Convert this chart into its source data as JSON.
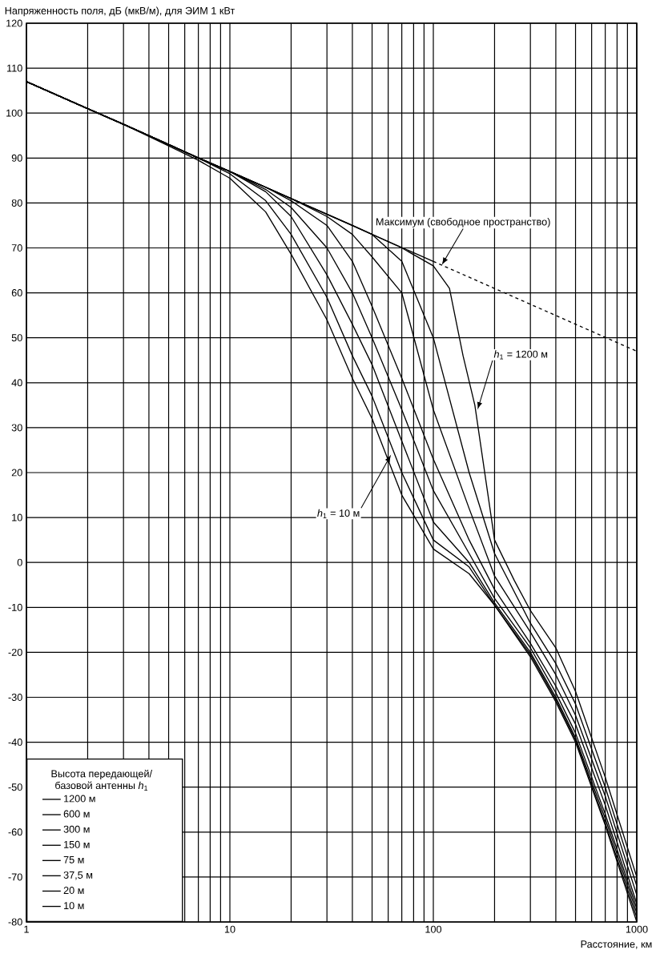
{
  "chart_data": {
    "type": "line",
    "ylabel": "Напряженность поля, дБ (мкВ/м), для ЭИМ 1 кВт",
    "xlabel": "Расстояние, км",
    "legend_title": "Высота передающей/ базовой антенны *h*$_{1}$",
    "x": [
      1,
      2,
      3,
      5,
      7,
      10,
      15,
      20,
      30,
      40,
      50,
      70,
      100,
      150,
      200,
      300,
      400,
      500,
      700,
      1000
    ],
    "series": [
      {
        "name": "1200 м",
        "color": "#000000",
        "x": [
          1,
          2,
          3,
          5,
          7,
          10,
          15,
          20,
          30,
          40,
          50,
          70,
          100,
          120,
          140,
          160,
          200,
          250,
          300,
          400,
          500,
          700,
          1000
        ],
        "values": [
          107,
          101,
          97.5,
          93,
          90,
          87,
          83.5,
          81,
          77.5,
          75,
          73,
          70,
          66,
          61,
          46,
          35,
          5,
          -4,
          -10.7,
          -19,
          -28.7,
          -47.8,
          -70
        ]
      },
      {
        "name": "600 м",
        "color": "#000000",
        "values": [
          107,
          101,
          97.5,
          93,
          90,
          87,
          83.5,
          81,
          77.5,
          75,
          73,
          67,
          50,
          20,
          2,
          -13.5,
          -22.5,
          -31.5,
          -50,
          -72
        ]
      },
      {
        "name": "300 м",
        "color": "#000000",
        "values": [
          107,
          101,
          97.5,
          93,
          90,
          87,
          83.5,
          81,
          77,
          73,
          68,
          60,
          34,
          12,
          -3,
          -15.5,
          -25,
          -34,
          -52,
          -74
        ]
      },
      {
        "name": "150 м",
        "color": "#000000",
        "values": [
          107,
          101,
          97.5,
          93,
          90,
          87,
          83.5,
          80.5,
          75,
          67,
          57,
          41,
          23,
          5,
          -6,
          -18,
          -27.5,
          -36,
          -54,
          -76
        ]
      },
      {
        "name": "75 м",
        "color": "#000000",
        "values": [
          107,
          101,
          97.5,
          93,
          90,
          87,
          83,
          79,
          70,
          60,
          50,
          34,
          16,
          2,
          -8,
          -19,
          -29,
          -38,
          -56,
          -77
        ]
      },
      {
        "name": "37,5 м",
        "color": "#000000",
        "values": [
          107,
          101,
          97.5,
          93,
          90,
          87,
          82.5,
          77,
          64,
          53,
          44,
          27,
          9,
          0,
          -9,
          -20,
          -30,
          -39,
          -57,
          -78
        ]
      },
      {
        "name": "20 м",
        "color": "#000000",
        "values": [
          107,
          101,
          97.5,
          93,
          90,
          86.5,
          80.5,
          73,
          59,
          46,
          37,
          20,
          5,
          -1,
          -9.5,
          -20.5,
          -30.5,
          -39.5,
          -58,
          -79
        ]
      },
      {
        "name": "10 м",
        "color": "#000000",
        "values": [
          107,
          101,
          97.5,
          92.7,
          89.5,
          85.5,
          78,
          68.6,
          54,
          41,
          32,
          15,
          3,
          -2.5,
          -9.5,
          -21,
          -31,
          -40,
          -58.5,
          -80
        ]
      },
      {
        "color": "#000000",
        "x": [
          1,
          100
        ],
        "values": [
          107,
          67
        ]
      },
      {
        "color": "#000000",
        "x": [
          100,
          1000
        ],
        "values": [
          67,
          47
        ],
        "line_style": "dashed"
      }
    ],
    "annotations": [
      {
        "text": "Максимум (свободное пространство)",
        "x": 110,
        "y": 66.2
      },
      {
        "text": "*h*$_{1}$ = 1200 м",
        "x": 165,
        "y": 34
      },
      {
        "text": "*h*$_{1}$ = 10 м",
        "x": 62,
        "y": 24
      }
    ],
    "log": "x",
    "xlim": [
      1,
      1000
    ],
    "xticks": [
      1,
      10,
      100,
      1000
    ],
    "ylim": [
      -80,
      120
    ],
    "yticks": [
      -80,
      -70,
      -60,
      -50,
      -40,
      -30,
      -20,
      -10,
      0,
      10,
      20,
      30,
      40,
      50,
      60,
      70,
      80,
      90,
      100,
      110,
      120
    ],
    "grid": true,
    "legend": "bottom left",
    "marker": "none",
    "line_style": "solid"
  }
}
